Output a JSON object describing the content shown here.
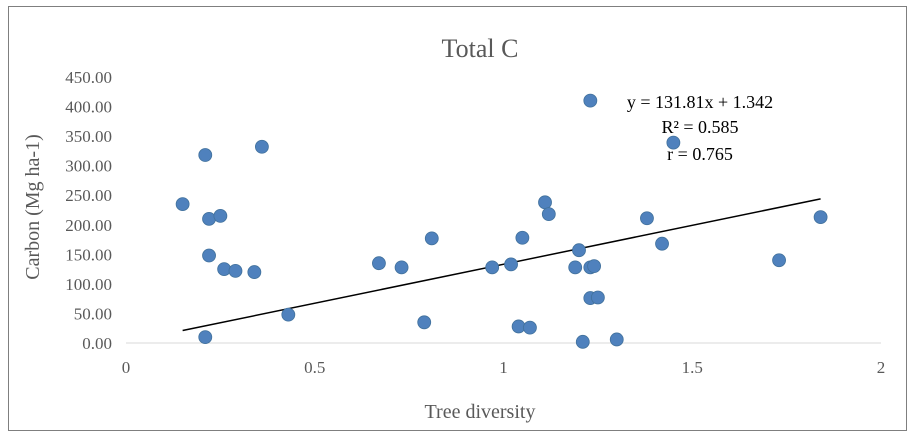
{
  "chart_data": {
    "type": "scatter",
    "title": "Total C",
    "xlabel": "Tree diversity",
    "ylabel": "Carbon (Mg ha-1)",
    "xlim": [
      0,
      2
    ],
    "ylim": [
      0,
      450
    ],
    "x_ticks": [
      "0",
      "0.5",
      "1",
      "1.5",
      "2"
    ],
    "x_tick_values": [
      0,
      0.5,
      1,
      1.5,
      2
    ],
    "y_ticks": [
      "0.00",
      "50.00",
      "100.00",
      "150.00",
      "200.00",
      "250.00",
      "300.00",
      "350.00",
      "400.00",
      "450.00"
    ],
    "y_tick_values": [
      0,
      50,
      100,
      150,
      200,
      250,
      300,
      350,
      400,
      450
    ],
    "grid": false,
    "legend": "none",
    "marker_color": "#4f81bd",
    "trendline": {
      "type": "linear",
      "slope": 131.81,
      "intercept": 1.342,
      "x_range": [
        0.15,
        1.84
      ],
      "color": "#000000"
    },
    "annotations": [
      "y = 131.81x + 1.342",
      "R² = 0.585",
      "r = 0.765"
    ],
    "points": [
      {
        "x": 0.15,
        "y": 235
      },
      {
        "x": 0.21,
        "y": 318
      },
      {
        "x": 0.22,
        "y": 210
      },
      {
        "x": 0.25,
        "y": 215
      },
      {
        "x": 0.22,
        "y": 148
      },
      {
        "x": 0.26,
        "y": 125
      },
      {
        "x": 0.29,
        "y": 122
      },
      {
        "x": 0.34,
        "y": 120
      },
      {
        "x": 0.36,
        "y": 332
      },
      {
        "x": 0.21,
        "y": 10
      },
      {
        "x": 0.43,
        "y": 48
      },
      {
        "x": 0.67,
        "y": 135
      },
      {
        "x": 0.73,
        "y": 128
      },
      {
        "x": 0.79,
        "y": 35
      },
      {
        "x": 0.81,
        "y": 177
      },
      {
        "x": 0.97,
        "y": 128
      },
      {
        "x": 1.02,
        "y": 133
      },
      {
        "x": 1.04,
        "y": 28
      },
      {
        "x": 1.05,
        "y": 178
      },
      {
        "x": 1.07,
        "y": 26
      },
      {
        "x": 1.11,
        "y": 238
      },
      {
        "x": 1.12,
        "y": 218
      },
      {
        "x": 1.19,
        "y": 128
      },
      {
        "x": 1.2,
        "y": 157
      },
      {
        "x": 1.21,
        "y": 2
      },
      {
        "x": 1.23,
        "y": 128
      },
      {
        "x": 1.24,
        "y": 130
      },
      {
        "x": 1.23,
        "y": 76
      },
      {
        "x": 1.25,
        "y": 77
      },
      {
        "x": 1.23,
        "y": 410
      },
      {
        "x": 1.3,
        "y": 6
      },
      {
        "x": 1.38,
        "y": 211
      },
      {
        "x": 1.42,
        "y": 168
      },
      {
        "x": 1.45,
        "y": 339
      },
      {
        "x": 1.73,
        "y": 140
      },
      {
        "x": 1.84,
        "y": 213
      }
    ]
  }
}
